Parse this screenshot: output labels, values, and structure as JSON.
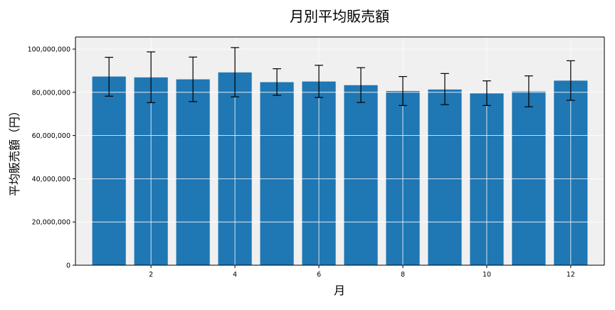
{
  "chart_data": {
    "type": "bar",
    "title": "月別平均販売額",
    "xlabel": "月",
    "ylabel": "平均販売額（円）",
    "x": [
      1,
      2,
      3,
      4,
      5,
      6,
      7,
      8,
      9,
      10,
      11,
      12
    ],
    "values": [
      87300000,
      86900000,
      86000000,
      89200000,
      84700000,
      85000000,
      83300000,
      80600000,
      81300000,
      79500000,
      80400000,
      85400000
    ],
    "error_low": [
      78200000,
      75200000,
      75700000,
      77900000,
      78600000,
      77600000,
      75300000,
      73900000,
      74300000,
      73900000,
      73300000,
      76300000
    ],
    "error_high": [
      96200000,
      98700000,
      96300000,
      100700000,
      90900000,
      92500000,
      91400000,
      87300000,
      88700000,
      85300000,
      87600000,
      94600000
    ],
    "xticks": [
      2,
      4,
      6,
      8,
      10,
      12
    ],
    "yticks": [
      0,
      20000000,
      40000000,
      60000000,
      80000000,
      100000000
    ],
    "ytick_labels": [
      "0",
      "20,000,000",
      "40,000,000",
      "60,000,000",
      "80,000,000",
      "100,000,000"
    ],
    "xlim": [
      0.2,
      12.8
    ],
    "ylim": [
      0,
      105600000
    ],
    "grid": true,
    "colors": {
      "bar": "#1f77b4",
      "plot_bg": "#f0f0f0",
      "grid": "#ffffff",
      "error": "#000000"
    }
  }
}
